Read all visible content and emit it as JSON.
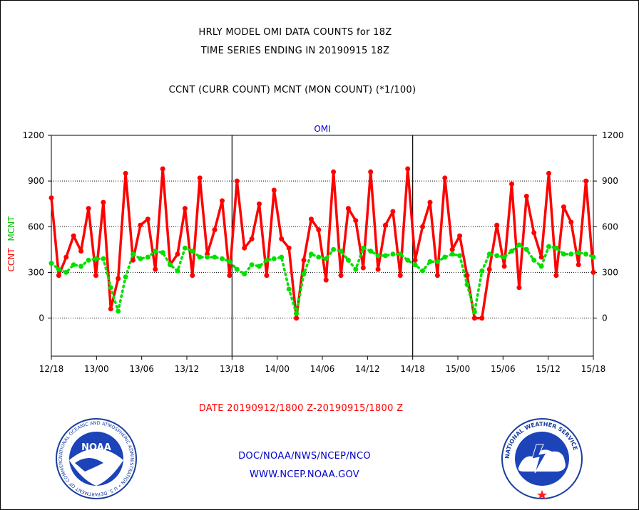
{
  "titles": {
    "line1": "HRLY MODEL OMI DATA COUNTS for 18Z",
    "line2": "TIME SERIES ENDING IN 20190915 18Z",
    "line3": "CCNT (CURR COUNT) MCNT (MON COUNT) (*1/100)"
  },
  "footer": {
    "date_range": "DATE 20190912/1800 Z-20190915/1800 Z",
    "org": "DOC/NOAA/NWS/NCEP/NCO",
    "url": "WWW.NCEP.NOAA.GOV"
  },
  "logos": {
    "noaa_text": "NOAA",
    "noaa_ring": "NATIONAL OCEANIC AND ATMOSPHERIC ADMINISTRATION • U.S. DEPARTMENT OF COMMERCE",
    "nws_ring": "NATIONAL WEATHER SERVICE"
  },
  "colors": {
    "ccnt": "#ff0000",
    "mcnt": "#00e000",
    "title": "#000000",
    "date_range": "#ff0000",
    "footer_link": "#0000cc",
    "panel_label": "#0000cc"
  },
  "chart_data": {
    "type": "line",
    "title": "OMI",
    "ylabel_left": [
      "CCNT",
      "MCNT"
    ],
    "ylim": [
      -250,
      1200
    ],
    "yticks": [
      0,
      300,
      600,
      900,
      1200
    ],
    "xticks": [
      "12/18",
      "13/00",
      "13/06",
      "13/12",
      "13/18",
      "14/00",
      "14/06",
      "14/12",
      "14/18",
      "15/00",
      "15/06",
      "15/12",
      "15/18"
    ],
    "hours_range": [
      0,
      72
    ],
    "day_boundaries_hours": [
      24,
      48
    ],
    "series": [
      {
        "name": "CCNT",
        "style": "solid",
        "values": [
          790,
          280,
          400,
          540,
          440,
          720,
          280,
          760,
          60,
          260,
          950,
          380,
          610,
          650,
          320,
          980,
          350,
          420,
          720,
          280,
          920,
          420,
          580,
          770,
          280,
          900,
          460,
          520,
          750,
          280,
          840,
          520,
          460,
          0,
          380,
          650,
          580,
          250,
          960,
          280,
          720,
          640,
          330,
          960,
          320,
          610,
          700,
          280,
          980,
          380,
          600,
          760,
          280,
          920,
          450,
          540,
          280,
          0,
          0,
          320,
          610,
          340,
          880,
          200,
          800,
          560,
          400,
          950,
          280,
          730,
          630,
          350,
          900,
          300
        ]
      },
      {
        "name": "MCNT",
        "style": "dotted",
        "values": [
          360,
          320,
          300,
          350,
          340,
          380,
          390,
          390,
          200,
          45,
          270,
          420,
          390,
          400,
          440,
          430,
          350,
          310,
          460,
          440,
          400,
          400,
          400,
          390,
          370,
          320,
          290,
          350,
          340,
          380,
          390,
          400,
          190,
          30,
          290,
          420,
          400,
          390,
          450,
          440,
          380,
          320,
          460,
          440,
          410,
          410,
          420,
          420,
          380,
          350,
          310,
          370,
          370,
          400,
          420,
          410,
          220,
          40,
          310,
          420,
          410,
          400,
          440,
          480,
          450,
          380,
          340,
          470,
          460,
          420,
          420,
          430,
          420,
          400
        ]
      }
    ]
  }
}
